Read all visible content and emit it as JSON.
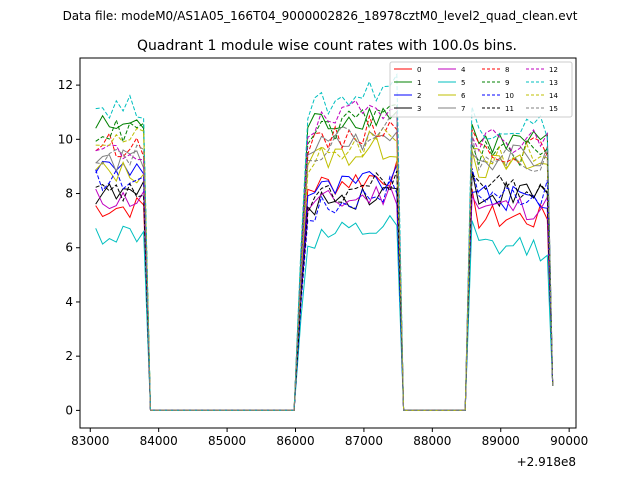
{
  "chart_data": {
    "type": "line",
    "suptitle": "Data file: modeM0/AS1A05_166T04_9000002826_18978cztM0_level2_quad_clean.evt",
    "title": "Quadrant 1 module wise count rates with 100.0s bins.",
    "xlabel": "",
    "ylabel": "",
    "x_offset_label": "+2.918e8",
    "xlim": [
      82850,
      90100
    ],
    "ylim": [
      -0.65,
      13.0
    ],
    "x_ticks": [
      83000,
      84000,
      85000,
      86000,
      87000,
      88000,
      89000,
      90000
    ],
    "x_tick_labels": [
      "83000",
      "84000",
      "85000",
      "86000",
      "87000",
      "88000",
      "89000",
      "90000"
    ],
    "y_ticks": [
      0,
      2,
      4,
      6,
      8,
      10,
      12
    ],
    "y_tick_labels": [
      "0",
      "2",
      "4",
      "6",
      "8",
      "10",
      "12"
    ],
    "legend_position": "top-right",
    "legend_columns": 4,
    "segments": [
      {
        "start": 83080,
        "bins": 8
      },
      {
        "gap": [
          83880,
          83980
        ]
      },
      {
        "zero_span": [
          83980,
          86080
        ]
      },
      {
        "start": 86080,
        "bins": 15
      },
      {
        "zero_span": [
          87680,
          88480
        ]
      },
      {
        "start": 88580,
        "bins": 12
      }
    ],
    "series": [
      {
        "name": "0",
        "color": "#ff0000",
        "dash": false,
        "levels": [
          7.5,
          8.2,
          7.1
        ]
      },
      {
        "name": "1",
        "color": "#008000",
        "dash": false,
        "levels": [
          10.5,
          10.5,
          9.9
        ]
      },
      {
        "name": "2",
        "color": "#0000ff",
        "dash": false,
        "levels": [
          9.0,
          8.0,
          7.8
        ]
      },
      {
        "name": "3",
        "color": "#000000",
        "dash": false,
        "levels": [
          8.0,
          7.6,
          8.0
        ]
      },
      {
        "name": "4",
        "color": "#bf00bf",
        "dash": false,
        "levels": [
          7.8,
          7.5,
          7.5
        ]
      },
      {
        "name": "5",
        "color": "#00bfbf",
        "dash": false,
        "levels": [
          6.5,
          6.2,
          6.0
        ]
      },
      {
        "name": "6",
        "color": "#bfbf00",
        "dash": false,
        "levels": [
          8.8,
          9.2,
          9.0
        ]
      },
      {
        "name": "7",
        "color": "#808080",
        "dash": false,
        "levels": [
          9.2,
          9.6,
          9.3
        ]
      },
      {
        "name": "8",
        "color": "#ff0000",
        "dash": true,
        "levels": [
          9.8,
          9.6,
          9.6
        ]
      },
      {
        "name": "9",
        "color": "#008000",
        "dash": true,
        "levels": [
          10.3,
          10.0,
          9.5
        ]
      },
      {
        "name": "10",
        "color": "#0000ff",
        "dash": true,
        "levels": [
          8.5,
          7.2,
          8.0
        ]
      },
      {
        "name": "11",
        "color": "#000000",
        "dash": true,
        "levels": [
          8.0,
          7.5,
          8.2
        ]
      },
      {
        "name": "12",
        "color": "#bf00bf",
        "dash": true,
        "levels": [
          9.5,
          10.3,
          10.0
        ]
      },
      {
        "name": "13",
        "color": "#00bfbf",
        "dash": true,
        "levels": [
          11.2,
          11.0,
          10.5
        ]
      },
      {
        "name": "14",
        "color": "#bfbf00",
        "dash": true,
        "levels": [
          10.0,
          9.0,
          9.4
        ]
      },
      {
        "name": "15",
        "color": "#808080",
        "dash": true,
        "levels": [
          9.5,
          9.5,
          9.3
        ]
      }
    ]
  }
}
